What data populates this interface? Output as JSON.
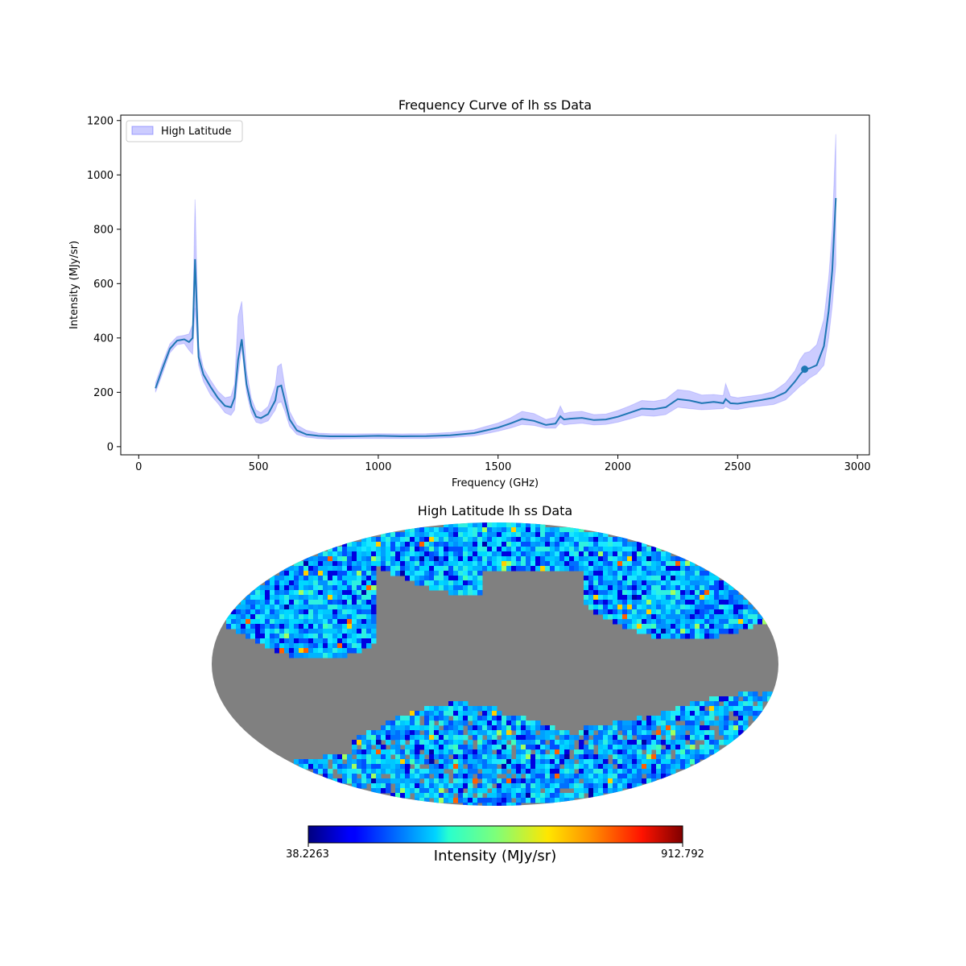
{
  "chart_data": [
    {
      "type": "line",
      "title": "Frequency Curve of lh ss Data",
      "xlabel": "Frequency (GHz)",
      "ylabel": "Intensity (MJy/sr)",
      "xlim": [
        -75,
        3050
      ],
      "ylim": [
        -30,
        1220
      ],
      "xticks": [
        0,
        500,
        1000,
        1500,
        2000,
        2500,
        3000
      ],
      "yticks": [
        0,
        200,
        400,
        600,
        800,
        1000,
        1200
      ],
      "grid": false,
      "legend": {
        "position": "top-left",
        "entries": [
          "High Latitude"
        ]
      },
      "line_color": "#1f77b4",
      "band_color": "#0000ff",
      "x": [
        70,
        100,
        130,
        160,
        190,
        210,
        225,
        235,
        250,
        270,
        300,
        330,
        360,
        385,
        400,
        415,
        430,
        450,
        470,
        490,
        510,
        540,
        570,
        580,
        595,
        610,
        630,
        660,
        700,
        750,
        800,
        900,
        1000,
        1100,
        1200,
        1300,
        1400,
        1450,
        1500,
        1550,
        1600,
        1650,
        1700,
        1740,
        1760,
        1775,
        1800,
        1850,
        1900,
        1950,
        2000,
        2050,
        2100,
        2150,
        2200,
        2250,
        2300,
        2350,
        2400,
        2440,
        2450,
        2470,
        2500,
        2550,
        2600,
        2650,
        2700,
        2740,
        2760,
        2780,
        2800,
        2830,
        2860,
        2880,
        2895,
        2910
      ],
      "series": [
        {
          "name": "High Latitude",
          "mean": [
            215,
            290,
            360,
            390,
            395,
            385,
            400,
            690,
            330,
            265,
            220,
            180,
            150,
            145,
            180,
            320,
            395,
            230,
            150,
            110,
            105,
            120,
            170,
            220,
            225,
            170,
            100,
            60,
            45,
            40,
            38,
            38,
            40,
            38,
            39,
            42,
            50,
            60,
            70,
            85,
            102,
            95,
            80,
            85,
            112,
            100,
            103,
            106,
            98,
            100,
            110,
            125,
            140,
            138,
            145,
            175,
            170,
            160,
            165,
            160,
            175,
            160,
            158,
            165,
            172,
            180,
            200,
            240,
            265,
            285,
            288,
            300,
            370,
            500,
            650,
            915
          ],
          "lower": [
            200,
            270,
            345,
            375,
            380,
            355,
            340,
            510,
            300,
            240,
            190,
            160,
            125,
            115,
            135,
            260,
            365,
            200,
            125,
            90,
            85,
            95,
            135,
            160,
            165,
            130,
            75,
            45,
            35,
            30,
            28,
            30,
            30,
            30,
            30,
            33,
            40,
            48,
            57,
            68,
            82,
            78,
            68,
            68,
            88,
            80,
            83,
            86,
            80,
            82,
            90,
            102,
            115,
            112,
            118,
            145,
            140,
            136,
            138,
            140,
            148,
            138,
            137,
            145,
            150,
            155,
            172,
            205,
            222,
            235,
            252,
            268,
            300,
            400,
            520,
            670
          ],
          "upper": [
            235,
            310,
            378,
            405,
            410,
            415,
            450,
            910,
            370,
            290,
            245,
            205,
            180,
            185,
            230,
            480,
            535,
            280,
            178,
            135,
            125,
            148,
            225,
            295,
            305,
            220,
            130,
            80,
            60,
            50,
            48,
            47,
            48,
            47,
            48,
            52,
            62,
            75,
            87,
            105,
            130,
            122,
            100,
            108,
            150,
            122,
            127,
            130,
            118,
            120,
            133,
            150,
            170,
            167,
            175,
            210,
            205,
            190,
            192,
            188,
            232,
            185,
            180,
            186,
            192,
            203,
            235,
            280,
            320,
            345,
            350,
            375,
            470,
            620,
            800,
            1150
          ]
        }
      ],
      "marker_point": {
        "x": 2780,
        "y": 285
      }
    },
    {
      "type": "heatmap",
      "title": "High Latitude lh ss Data",
      "projection": "mollweide",
      "colormap": "jet",
      "masked_color": "#808080",
      "colorbar": {
        "label": "Intensity (MJy/sr)",
        "min_label": "38.2263",
        "max_label": "912.792",
        "min": 38.2263,
        "max": 912.792
      }
    }
  ]
}
